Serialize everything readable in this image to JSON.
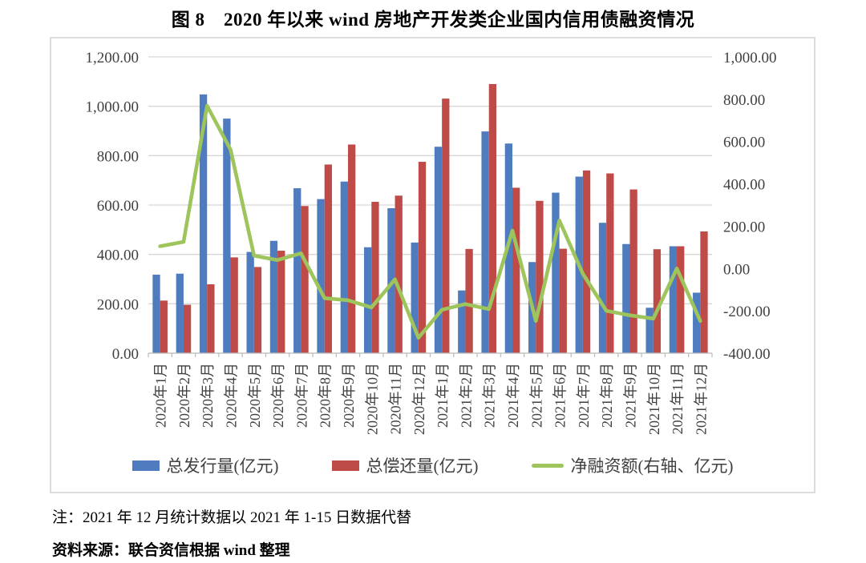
{
  "page": {
    "title": "图 8　2020 年以来 wind 房地产开发类企业国内信用债融资情况",
    "note": "注：2021 年 12 月统计数据以 2021 年 1-15 日数据代替",
    "source": "资料来源：联合资信根据 wind 整理"
  },
  "chart_data": {
    "type": "bar",
    "subtype": "grouped-bar-with-line-combo",
    "title": "图 8　2020 年以来 wind 房地产开发类企业国内信用债融资情况",
    "grid": true,
    "legend_position": "bottom",
    "categories": [
      "2020年1月",
      "2020年2月",
      "2020年3月",
      "2020年4月",
      "2020年5月",
      "2020年6月",
      "2020年7月",
      "2020年8月",
      "2020年9月",
      "2020年10月",
      "2020年11月",
      "2020年12月",
      "2021年1月",
      "2021年2月",
      "2021年3月",
      "2021年4月",
      "2021年5月",
      "2021年6月",
      "2021年7月",
      "2021年8月",
      "2021年9月",
      "2021年10月",
      "2021年11月",
      "2021年12月"
    ],
    "series": [
      {
        "name": "总发行量(亿元)",
        "type": "bar",
        "axis": "left",
        "color": "#4e7cbe",
        "values": [
          318,
          322,
          1048,
          950,
          410,
          455,
          668,
          624,
          695,
          429,
          587,
          448,
          836,
          254,
          898,
          849,
          369,
          650,
          715,
          528,
          442,
          184,
          433,
          245
        ]
      },
      {
        "name": "总偿还量(亿元)",
        "type": "bar",
        "axis": "left",
        "color": "#be4b48",
        "values": [
          213,
          196,
          279,
          388,
          349,
          415,
          596,
          764,
          845,
          613,
          638,
          775,
          1031,
          422,
          1090,
          670,
          617,
          423,
          740,
          728,
          663,
          421,
          433,
          493
        ]
      },
      {
        "name": "净融资额(右轴、亿元)",
        "type": "line",
        "axis": "right",
        "color": "#9ec45c",
        "values": [
          105,
          126,
          769,
          562,
          61,
          40,
          72,
          -140,
          -150,
          -184,
          -51,
          -327,
          -195,
          -168,
          -192,
          179,
          -248,
          227,
          -25,
          -200,
          -221,
          -237,
          0,
          -248
        ]
      }
    ],
    "left_axis": {
      "min": 0,
      "max": 1200,
      "ticks": [
        {
          "value": 0,
          "label": "0.00"
        },
        {
          "value": 200,
          "label": "200.00"
        },
        {
          "value": 400,
          "label": "400.00"
        },
        {
          "value": 600,
          "label": "600.00"
        },
        {
          "value": 800,
          "label": "800.00"
        },
        {
          "value": 1000,
          "label": "1,000.00"
        },
        {
          "value": 1200,
          "label": "1,200.00"
        }
      ]
    },
    "right_axis": {
      "min": -400,
      "max": 1000,
      "ticks": [
        {
          "value": 1000,
          "label": "1,000.00"
        },
        {
          "value": 800,
          "label": "800.00"
        },
        {
          "value": 600,
          "label": "600.00"
        },
        {
          "value": 400,
          "label": "400.00"
        },
        {
          "value": 200,
          "label": "200.00"
        },
        {
          "value": 0,
          "label": "0.00"
        },
        {
          "value": -200,
          "label": "-200.00"
        },
        {
          "value": -400,
          "label": "-400.00"
        }
      ]
    },
    "colors": {
      "gridline": "#d6d6d6",
      "axis_line": "#bfbfbf",
      "axis_text": "#404040",
      "chart_border": "#dcdcdc"
    }
  }
}
